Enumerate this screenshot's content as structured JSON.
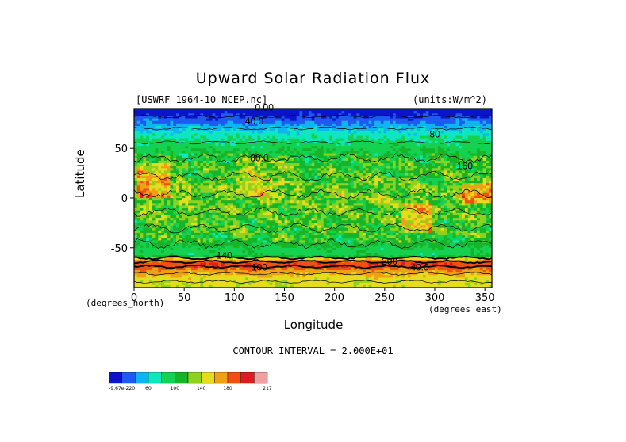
{
  "chart_data": {
    "type": "heatmap",
    "title": "Upward Solar Radiation Flux",
    "file_label": "[USWRF_1964-10_NCEP.nc]",
    "units_label": "(units:W/m^2)",
    "xlabel": "Longitude",
    "ylabel": "Latitude",
    "x_unit_label": "(degrees_east)",
    "y_unit_label": "(degrees_north)",
    "xlim": [
      0,
      357
    ],
    "ylim": [
      -90,
      90
    ],
    "x_ticks": [
      0,
      50,
      100,
      150,
      200,
      250,
      300,
      350
    ],
    "y_ticks": [
      50,
      0,
      -50
    ],
    "contour_interval_label": "CONTOUR INTERVAL = 2.000E+01",
    "contour_labels": [
      "0.00",
      "40.0",
      "80.0",
      "80",
      "160",
      "200",
      "140",
      "100",
      "40.0"
    ],
    "colorbar": {
      "labels": [
        "-9.67e-220",
        "60",
        "100",
        "140",
        "180",
        "217"
      ],
      "colors": [
        "#0a14c8",
        "#1e5af0",
        "#10b4f0",
        "#0ee6c0",
        "#14d250",
        "#18b428",
        "#8cd21e",
        "#e6dc1e",
        "#f0a014",
        "#f05014",
        "#dc1e1e",
        "#f0a0a0"
      ]
    },
    "latitude_bands": [
      {
        "lat": 88,
        "value": 5
      },
      {
        "lat": 80,
        "value": 25
      },
      {
        "lat": 72,
        "value": 50
      },
      {
        "lat": 62,
        "value": 75
      },
      {
        "lat": 50,
        "value": 95
      },
      {
        "lat": 35,
        "value": 110
      },
      {
        "lat": 20,
        "value": 115
      },
      {
        "lat": 5,
        "value": 125
      },
      {
        "lat": -10,
        "value": 120
      },
      {
        "lat": -25,
        "value": 115
      },
      {
        "lat": -40,
        "value": 110
      },
      {
        "lat": -50,
        "value": 100
      },
      {
        "lat": -58,
        "value": 95
      },
      {
        "lat": -63,
        "value": 185
      },
      {
        "lat": -68,
        "value": 200
      },
      {
        "lat": -73,
        "value": 175
      },
      {
        "lat": -80,
        "value": 150
      },
      {
        "lat": -86,
        "value": 145
      }
    ]
  }
}
